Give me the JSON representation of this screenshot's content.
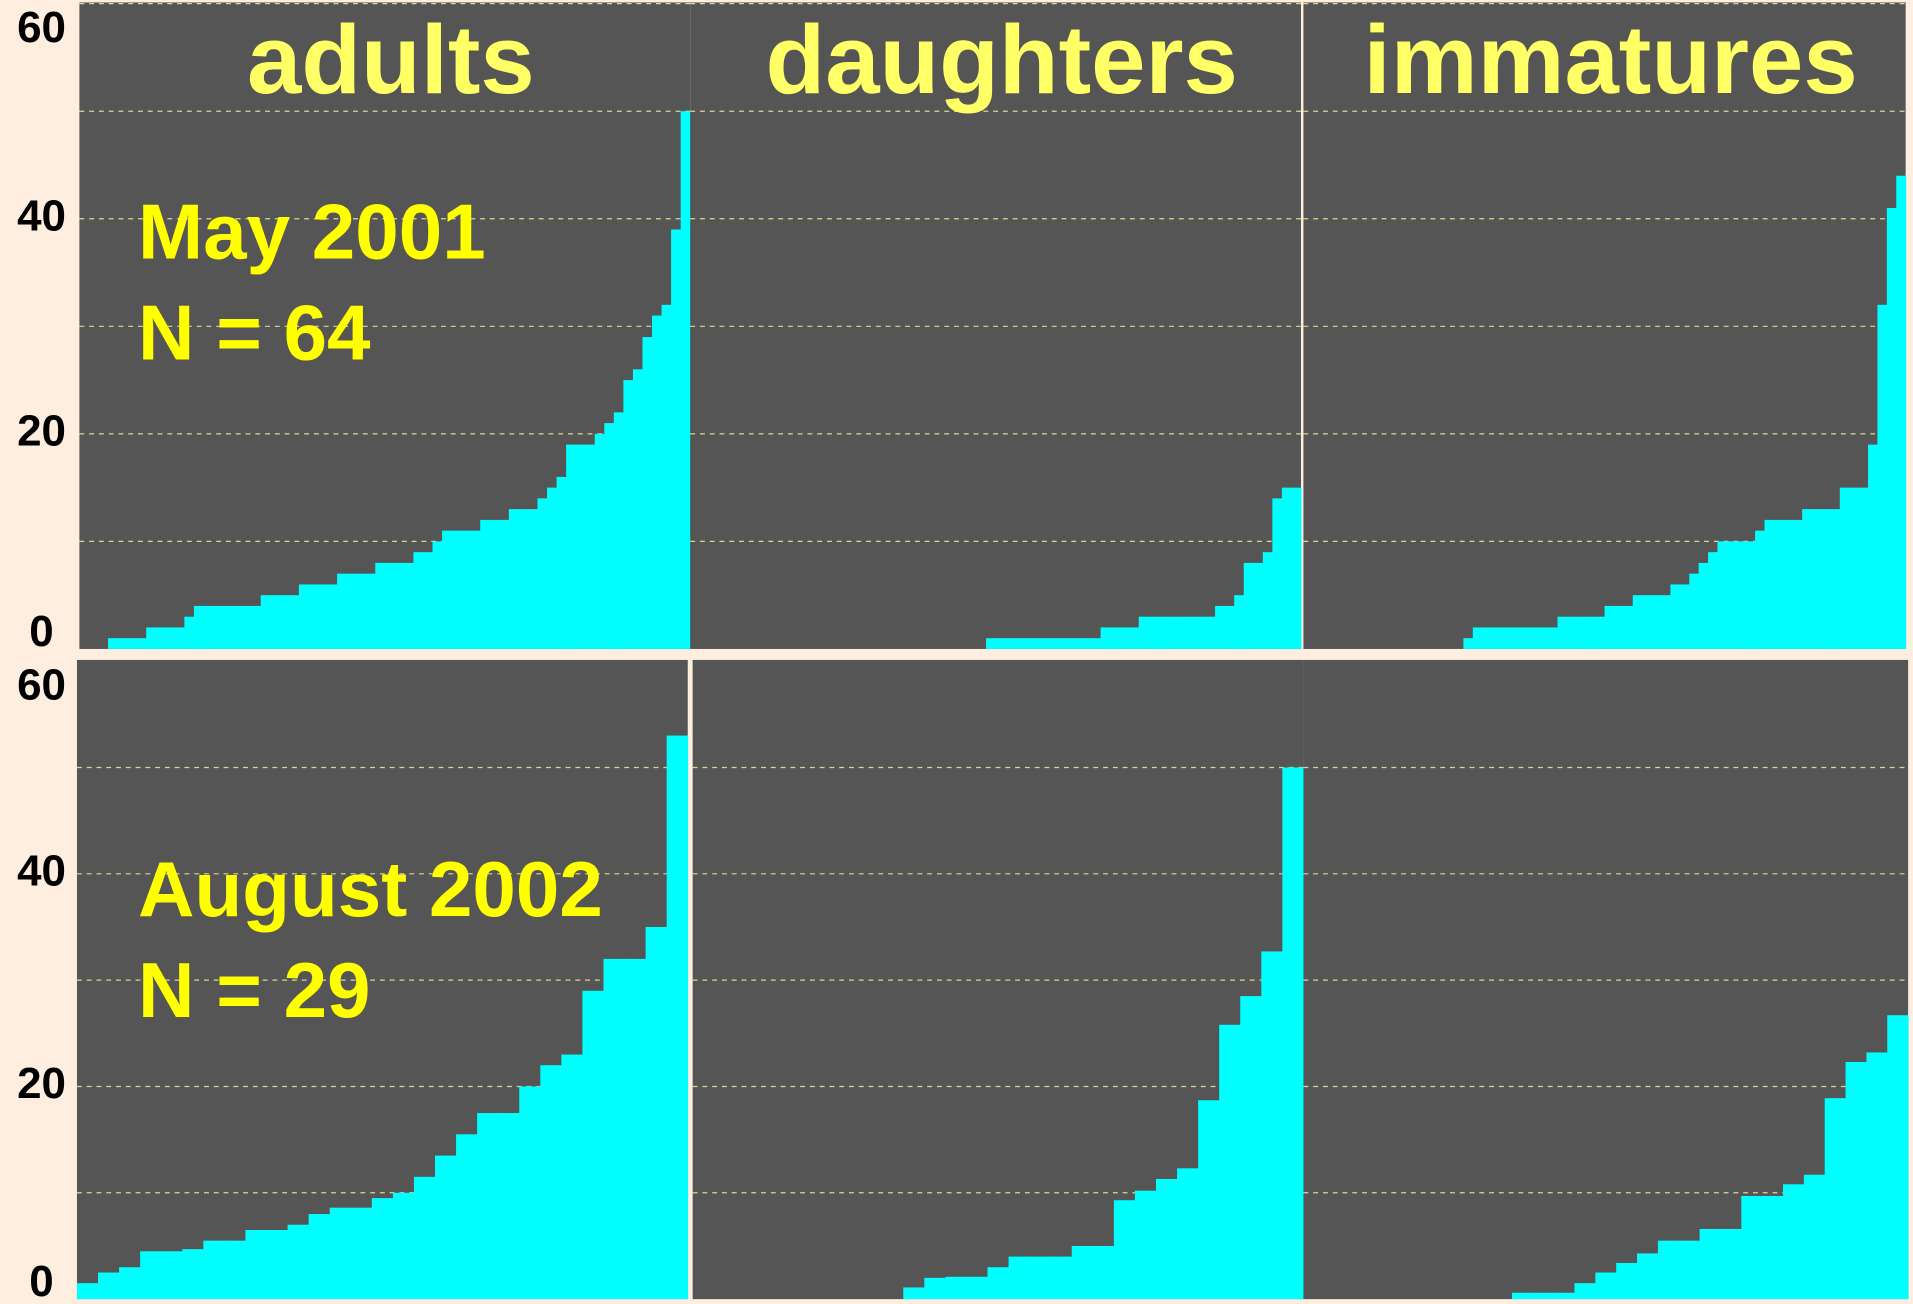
{
  "chart_data": [
    {
      "type": "bar",
      "title": "adults",
      "annotations": [
        "May 2001",
        "N = 64"
      ],
      "color": "#00ffff",
      "values": [
        0,
        0,
        0,
        1,
        1,
        1,
        1,
        2,
        2,
        2,
        2,
        3,
        4,
        4,
        4,
        4,
        4,
        4,
        4,
        5,
        5,
        5,
        5,
        6,
        6,
        6,
        6,
        7,
        7,
        7,
        7,
        8,
        8,
        8,
        8,
        9,
        9,
        10,
        11,
        11,
        11,
        11,
        12,
        12,
        12,
        13,
        13,
        13,
        14,
        15,
        16,
        19,
        19,
        19,
        20,
        21,
        22,
        25,
        26,
        29,
        31,
        32,
        39,
        50
      ],
      "ylim": [
        0,
        60
      ],
      "yticks": [
        0,
        20,
        40,
        60
      ],
      "grid_yticks": [
        10,
        20,
        30,
        40,
        50,
        60
      ]
    },
    {
      "type": "bar",
      "title": "daughters",
      "color": "#00ffff",
      "values": [
        0,
        0,
        0,
        0,
        0,
        0,
        0,
        0,
        0,
        0,
        0,
        0,
        0,
        0,
        0,
        0,
        0,
        0,
        0,
        0,
        0,
        0,
        0,
        0,
        0,
        0,
        0,
        0,
        0,
        0,
        0,
        1,
        1,
        1,
        1,
        1,
        1,
        1,
        1,
        1,
        1,
        1,
        1,
        2,
        2,
        2,
        2,
        3,
        3,
        3,
        3,
        3,
        3,
        3,
        3,
        4,
        4,
        5,
        8,
        8,
        9,
        14,
        15,
        15
      ],
      "ylim": [
        0,
        60
      ],
      "grid_yticks": [
        10,
        20,
        30,
        40,
        50,
        60
      ]
    },
    {
      "type": "bar",
      "title": "immatures",
      "color": "#00ffff",
      "values": [
        0,
        0,
        0,
        0,
        0,
        0,
        0,
        0,
        0,
        0,
        0,
        0,
        0,
        0,
        0,
        0,
        0,
        1,
        2,
        2,
        2,
        2,
        2,
        2,
        2,
        2,
        2,
        3,
        3,
        3,
        3,
        3,
        4,
        4,
        4,
        5,
        5,
        5,
        5,
        6,
        6,
        7,
        8,
        9,
        10,
        10,
        10,
        10,
        11,
        12,
        12,
        12,
        12,
        13,
        13,
        13,
        13,
        15,
        15,
        15,
        19,
        32,
        41,
        44
      ],
      "ylim": [
        0,
        60
      ],
      "grid_yticks": [
        10,
        20,
        30,
        40,
        50,
        60
      ]
    },
    {
      "type": "bar",
      "annotations": [
        "August 2002",
        "N = 29"
      ],
      "color": "#00ffff",
      "values": [
        1.5,
        2.5,
        3,
        4.5,
        4.5,
        4.7,
        5.5,
        5.5,
        6.5,
        6.5,
        7,
        8,
        8.6,
        8.6,
        9.5,
        10,
        11.5,
        13.5,
        15.5,
        17.5,
        17.5,
        20,
        22,
        23,
        29,
        32,
        32,
        35,
        53
      ],
      "ylim": [
        0,
        60
      ],
      "yticks": [
        0,
        20,
        40,
        60
      ],
      "grid_yticks": [
        10,
        20,
        30,
        40,
        50
      ]
    },
    {
      "type": "bar",
      "color": "#00ffff",
      "values": [
        0,
        0,
        0,
        0,
        0,
        0,
        0,
        0,
        0,
        0,
        1.1,
        2,
        2.1,
        2.1,
        3,
        4,
        4,
        4,
        5,
        5,
        9.3,
        10.2,
        11.3,
        12.3,
        18.7,
        25.8,
        28.5,
        32.7,
        50
      ],
      "ylim": [
        0,
        60
      ],
      "grid_yticks": [
        10,
        20,
        30,
        40,
        50
      ]
    },
    {
      "type": "bar",
      "color": "#00ffff",
      "values": [
        0,
        0,
        0,
        0,
        0,
        0,
        0,
        0,
        0,
        0,
        0.6,
        0.6,
        0.6,
        1.5,
        2.5,
        3.4,
        4.3,
        5.5,
        5.5,
        6.6,
        6.6,
        9.7,
        9.7,
        10.8,
        11.7,
        18.9,
        22.3,
        23.2,
        26.7
      ],
      "ylim": [
        0,
        60
      ],
      "grid_yticks": [
        10,
        20,
        30,
        40,
        50
      ]
    }
  ]
}
